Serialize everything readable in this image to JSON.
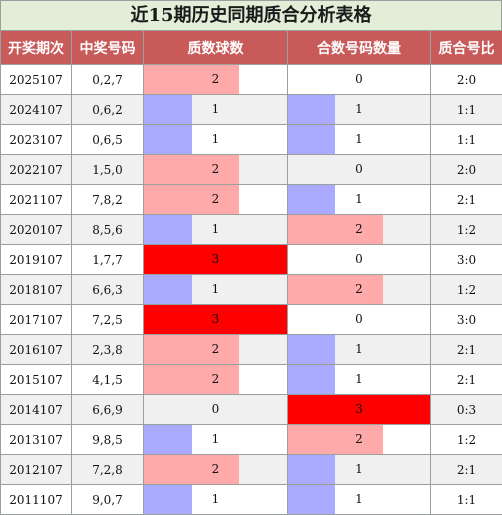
{
  "title": "近15期历史同期质合分析表格",
  "headers": [
    "开奖期次",
    "中奖号码",
    "质数球数",
    "合数号码数量",
    "质合号比"
  ],
  "colors": {
    "low": "#aaaaff",
    "mid": "#ffaaaa",
    "high": "#ff0000"
  },
  "rows": [
    {
      "period": "2025107",
      "numbers": "0,2,7",
      "prime": "2",
      "composite": "0",
      "ratio": "2:0"
    },
    {
      "period": "2024107",
      "numbers": "0,6,2",
      "prime": "1",
      "composite": "1",
      "ratio": "1:1"
    },
    {
      "period": "2023107",
      "numbers": "0,6,5",
      "prime": "1",
      "composite": "1",
      "ratio": "1:1"
    },
    {
      "period": "2022107",
      "numbers": "1,5,0",
      "prime": "2",
      "composite": "0",
      "ratio": "2:0"
    },
    {
      "period": "2021107",
      "numbers": "7,8,2",
      "prime": "2",
      "composite": "1",
      "ratio": "2:1"
    },
    {
      "period": "2020107",
      "numbers": "8,5,6",
      "prime": "1",
      "composite": "2",
      "ratio": "1:2"
    },
    {
      "period": "2019107",
      "numbers": "1,7,7",
      "prime": "3",
      "composite": "0",
      "ratio": "3:0"
    },
    {
      "period": "2018107",
      "numbers": "6,6,3",
      "prime": "1",
      "composite": "2",
      "ratio": "1:2"
    },
    {
      "period": "2017107",
      "numbers": "7,2,5",
      "prime": "3",
      "composite": "0",
      "ratio": "3:0"
    },
    {
      "period": "2016107",
      "numbers": "2,3,8",
      "prime": "2",
      "composite": "1",
      "ratio": "2:1"
    },
    {
      "period": "2015107",
      "numbers": "4,1,5",
      "prime": "2",
      "composite": "1",
      "ratio": "2:1"
    },
    {
      "period": "2014107",
      "numbers": "6,6,9",
      "prime": "0",
      "composite": "3",
      "ratio": "0:3"
    },
    {
      "period": "2013107",
      "numbers": "9,8,5",
      "prime": "1",
      "composite": "2",
      "ratio": "1:2"
    },
    {
      "period": "2012107",
      "numbers": "7,2,8",
      "prime": "2",
      "composite": "1",
      "ratio": "2:1"
    },
    {
      "period": "2011107",
      "numbers": "9,0,7",
      "prime": "1",
      "composite": "1",
      "ratio": "1:1"
    }
  ]
}
